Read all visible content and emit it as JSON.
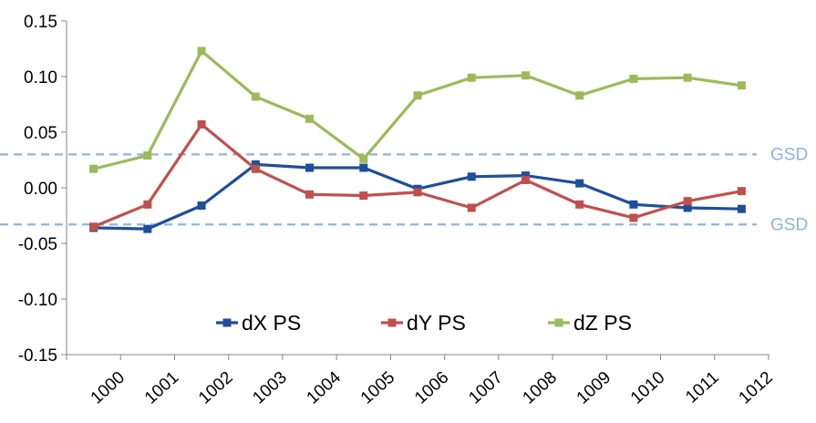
{
  "chart_data": {
    "type": "line",
    "categories": [
      "1000",
      "1001",
      "1002",
      "1003",
      "1004",
      "1005",
      "1006",
      "1007",
      "1008",
      "1009",
      "1010",
      "1011",
      "1012"
    ],
    "ylim": [
      -0.15,
      0.15
    ],
    "yticks": [
      "0.15",
      "0.10",
      "0.05",
      "0.00",
      "-0.05",
      "-0.10",
      "-0.15"
    ],
    "yticks_values": [
      0.15,
      0.1,
      0.05,
      0.0,
      -0.05,
      -0.1,
      -0.15
    ],
    "grid": false,
    "legend_position": "bottom-inside",
    "series": [
      {
        "name": "dX PS",
        "color": "#1f4e9a",
        "values": [
          -0.036,
          -0.037,
          -0.016,
          0.021,
          0.018,
          0.018,
          -0.001,
          0.01,
          0.011,
          0.004,
          -0.015,
          -0.018,
          -0.019
        ]
      },
      {
        "name": "dY PS",
        "color": "#c0504d",
        "values": [
          -0.035,
          -0.015,
          0.057,
          0.017,
          -0.006,
          -0.007,
          -0.004,
          -0.018,
          0.007,
          -0.015,
          -0.027,
          -0.012,
          -0.003
        ]
      },
      {
        "name": "dZ PS",
        "color": "#9bbb59",
        "values": [
          0.017,
          0.029,
          0.123,
          0.082,
          0.062,
          0.026,
          0.083,
          0.099,
          0.101,
          0.083,
          0.098,
          0.099,
          0.092
        ]
      }
    ],
    "reference_lines": [
      {
        "label": "GSD",
        "value": 0.03,
        "color": "#8db4e2"
      },
      {
        "label": "GSD",
        "value": -0.033,
        "color": "#8db4e2"
      }
    ]
  }
}
